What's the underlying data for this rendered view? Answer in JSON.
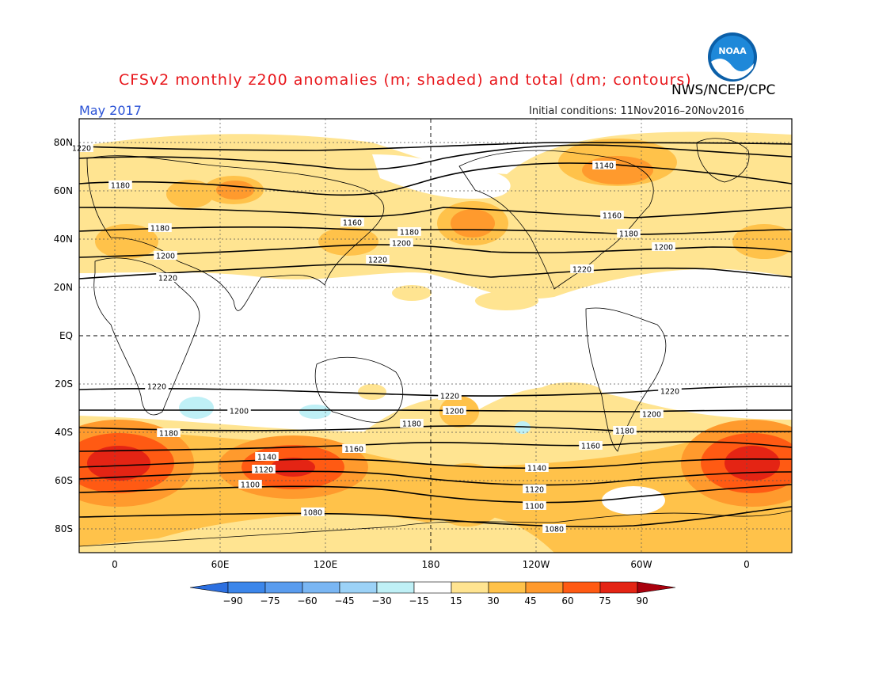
{
  "header": {
    "title": "CFSv2 monthly z200 anomalies (m; shaded) and total (dm; contours)",
    "agency": "NWS/NCEP/CPC",
    "month": "May 2017",
    "initial_conditions": "Initial conditions: 11Nov2016–20Nov2016",
    "logo_text": "NOAA"
  },
  "axes": {
    "lat_labels": [
      "80N",
      "60N",
      "40N",
      "20N",
      "EQ",
      "20S",
      "40S",
      "60S",
      "80S"
    ],
    "lon_labels": [
      "0",
      "60E",
      "120E",
      "180",
      "120W",
      "60W",
      "0"
    ]
  },
  "colorbar": {
    "ticks": [
      "−90",
      "−75",
      "−60",
      "−45",
      "−30",
      "−15",
      "15",
      "30",
      "45",
      "60",
      "75",
      "90"
    ],
    "colors": [
      "#2c6fe0",
      "#3c86ea",
      "#5a9cee",
      "#7ab6f3",
      "#9cd2f7",
      "#bff0f6",
      "#ffffff",
      "#ffe491",
      "#ffc24a",
      "#ff9a2d",
      "#ff5a13",
      "#e42414",
      "#a9000d"
    ]
  },
  "contours": [
    {
      "label": "1080",
      "positions": [
        "395,647",
        "700,668"
      ]
    },
    {
      "label": "1100",
      "positions": [
        "316,612",
        "675,639"
      ]
    },
    {
      "label": "1120",
      "positions": [
        "333,593",
        "675,618"
      ]
    },
    {
      "label": "1140",
      "positions": [
        "337,577",
        "678,591",
        "763,209",
        "1140,237"
      ]
    },
    {
      "label": "1160",
      "positions": [
        "447,567",
        "746,563",
        "445,281",
        "773,272"
      ]
    },
    {
      "label": "1180",
      "positions": [
        "213,547",
        "520,535",
        "789,544",
        "152,234",
        "202,288",
        "517,293",
        "794,295"
      ]
    },
    {
      "label": "1200",
      "positions": [
        "302,519",
        "574,519",
        "823,523",
        "507,307",
        "209,323",
        "838,312"
      ]
    },
    {
      "label": "1220",
      "positions": [
        "198,488",
        "568,500",
        "846,494",
        "212,351",
        "477,328",
        "735,340",
        "103,187"
      ]
    }
  ]
}
